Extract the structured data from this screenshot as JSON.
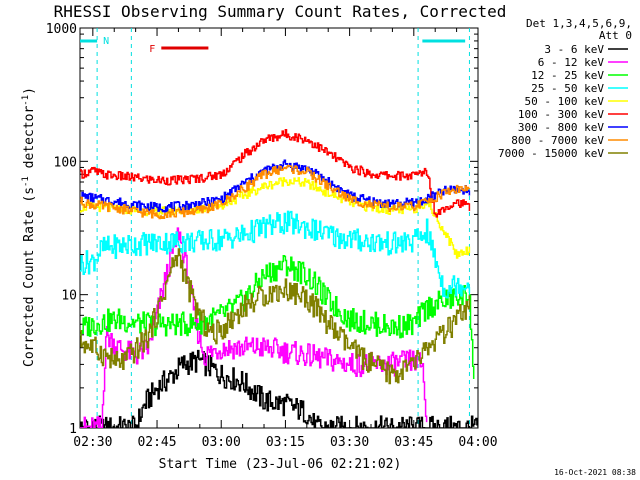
{
  "chart_data": {
    "type": "line",
    "title": "RHESSI Observing Summary Count Rates, Corrected",
    "xlabel": "Start Time (23-Jul-06 02:21:02)",
    "ylabel": "Corrected Count Rate (s",
    "ylabel_sup1": "-1",
    "ylabel_mid": " detector",
    "ylabel_sup2": "-1",
    "ylabel_end": ")",
    "y_scale": "log",
    "ylim": [
      1,
      1000
    ],
    "xlim_minutes": [
      -33,
      60
    ],
    "x_ticks": [
      {
        "t": -30,
        "label": "02:30"
      },
      {
        "t": -15,
        "label": "02:45"
      },
      {
        "t": 0,
        "label": "03:00"
      },
      {
        "t": 15,
        "label": "03:15"
      },
      {
        "t": 30,
        "label": "03:30"
      },
      {
        "t": 45,
        "label": "03:45"
      },
      {
        "t": 60,
        "label": "04:00"
      }
    ],
    "y_ticks": [
      {
        "v": 1,
        "label": "1"
      },
      {
        "v": 10,
        "label": "10"
      },
      {
        "v": 100,
        "label": "100"
      },
      {
        "v": 1000,
        "label": "1000"
      }
    ],
    "legend_header": [
      "Det 1,3,4,5,6,9,",
      "Att 0"
    ],
    "series": [
      {
        "name": "3 - 6 keV",
        "color": "#000000",
        "points": [
          [
            -33,
            1
          ],
          [
            -20,
            1
          ],
          [
            -18,
            1.5
          ],
          [
            -15,
            2
          ],
          [
            -12,
            2.4
          ],
          [
            -9,
            3
          ],
          [
            -5,
            3.2
          ],
          [
            0,
            2.5
          ],
          [
            5,
            2.2
          ],
          [
            10,
            1.6
          ],
          [
            15,
            1.5
          ],
          [
            20,
            1.3
          ],
          [
            22,
            1
          ],
          [
            60,
            1
          ]
        ]
      },
      {
        "name": "6 - 12 keV",
        "color": "#ff00ff",
        "points": [
          [
            -33,
            1
          ],
          [
            -28,
            1
          ],
          [
            -27,
            5
          ],
          [
            -24,
            4
          ],
          [
            -20,
            3.5
          ],
          [
            -17,
            4
          ],
          [
            -14,
            10
          ],
          [
            -12,
            18
          ],
          [
            -10,
            30
          ],
          [
            -8,
            15
          ],
          [
            -6,
            6
          ],
          [
            -4,
            3.5
          ],
          [
            0,
            4
          ],
          [
            10,
            4
          ],
          [
            20,
            3.5
          ],
          [
            30,
            3
          ],
          [
            40,
            3
          ],
          [
            45,
            3.2
          ],
          [
            47,
            3
          ],
          [
            48,
            1
          ]
        ]
      },
      {
        "name": "12 - 25 keV",
        "color": "#00ff00",
        "points": [
          [
            -33,
            5.5
          ],
          [
            -30,
            6
          ],
          [
            -27,
            6.3
          ],
          [
            -24,
            6.5
          ],
          [
            -18,
            6
          ],
          [
            -12,
            6
          ],
          [
            -6,
            6
          ],
          [
            -3,
            6.5
          ],
          [
            0,
            7
          ],
          [
            5,
            9
          ],
          [
            10,
            14
          ],
          [
            15,
            17
          ],
          [
            20,
            14
          ],
          [
            25,
            9
          ],
          [
            30,
            6.5
          ],
          [
            40,
            5.7
          ],
          [
            45,
            6
          ],
          [
            48,
            8
          ],
          [
            52,
            9
          ],
          [
            55,
            9.5
          ],
          [
            58,
            10
          ],
          [
            59,
            2
          ]
        ]
      },
      {
        "name": "25 - 50 keV",
        "color": "#00ffff",
        "points": [
          [
            -33,
            17
          ],
          [
            -30,
            18
          ],
          [
            -28,
            22
          ],
          [
            -25,
            23
          ],
          [
            -20,
            24
          ],
          [
            -15,
            24.5
          ],
          [
            -10,
            25
          ],
          [
            -5,
            25
          ],
          [
            0,
            26
          ],
          [
            5,
            28
          ],
          [
            10,
            32
          ],
          [
            15,
            35
          ],
          [
            20,
            32
          ],
          [
            25,
            28
          ],
          [
            30,
            26
          ],
          [
            35,
            25
          ],
          [
            40,
            24
          ],
          [
            45,
            25
          ],
          [
            48,
            30
          ],
          [
            52,
            11
          ],
          [
            55,
            12
          ],
          [
            58,
            12
          ]
        ]
      },
      {
        "name": "50 - 100 keV",
        "color": "#ffff00",
        "points": [
          [
            -33,
            45
          ],
          [
            -30,
            46
          ],
          [
            -25,
            44
          ],
          [
            -20,
            43
          ],
          [
            -15,
            42
          ],
          [
            -10,
            43
          ],
          [
            -5,
            44
          ],
          [
            0,
            47
          ],
          [
            5,
            55
          ],
          [
            10,
            65
          ],
          [
            15,
            72
          ],
          [
            20,
            68
          ],
          [
            25,
            58
          ],
          [
            30,
            49
          ],
          [
            35,
            45
          ],
          [
            40,
            43
          ],
          [
            45,
            44
          ],
          [
            48,
            50
          ],
          [
            52,
            30
          ],
          [
            55,
            20
          ],
          [
            58,
            22
          ]
        ]
      },
      {
        "name": "100 - 300 keV",
        "color": "#ff0000",
        "points": [
          [
            -33,
            80
          ],
          [
            -30,
            85
          ],
          [
            -28,
            80
          ],
          [
            -25,
            78
          ],
          [
            -20,
            75
          ],
          [
            -15,
            72
          ],
          [
            -10,
            72
          ],
          [
            -5,
            75
          ],
          [
            0,
            80
          ],
          [
            5,
            110
          ],
          [
            10,
            145
          ],
          [
            15,
            160
          ],
          [
            20,
            145
          ],
          [
            25,
            115
          ],
          [
            30,
            90
          ],
          [
            35,
            80
          ],
          [
            40,
            78
          ],
          [
            45,
            78
          ],
          [
            48,
            85
          ],
          [
            50,
            40
          ],
          [
            52,
            45
          ],
          [
            55,
            50
          ],
          [
            58,
            45
          ]
        ]
      },
      {
        "name": "300 - 800 keV",
        "color": "#0000ff",
        "points": [
          [
            -33,
            55
          ],
          [
            -30,
            53
          ],
          [
            -25,
            50
          ],
          [
            -20,
            47
          ],
          [
            -15,
            45
          ],
          [
            -10,
            46
          ],
          [
            -5,
            48
          ],
          [
            0,
            52
          ],
          [
            5,
            68
          ],
          [
            10,
            85
          ],
          [
            15,
            95
          ],
          [
            20,
            88
          ],
          [
            25,
            70
          ],
          [
            30,
            55
          ],
          [
            35,
            50
          ],
          [
            40,
            48
          ],
          [
            45,
            49
          ],
          [
            48,
            52
          ],
          [
            52,
            60
          ],
          [
            55,
            62
          ],
          [
            58,
            60
          ]
        ]
      },
      {
        "name": "800 - 7000 keV",
        "color": "#ff8c00",
        "points": [
          [
            -33,
            50
          ],
          [
            -30,
            47
          ],
          [
            -25,
            45
          ],
          [
            -20,
            42
          ],
          [
            -15,
            40
          ],
          [
            -10,
            41
          ],
          [
            -5,
            43
          ],
          [
            0,
            48
          ],
          [
            5,
            62
          ],
          [
            10,
            80
          ],
          [
            15,
            90
          ],
          [
            20,
            83
          ],
          [
            25,
            65
          ],
          [
            30,
            52
          ],
          [
            35,
            47
          ],
          [
            40,
            45
          ],
          [
            45,
            46
          ],
          [
            48,
            50
          ],
          [
            52,
            58
          ],
          [
            55,
            62
          ],
          [
            58,
            62
          ]
        ]
      },
      {
        "name": "7000 - 15000 keV",
        "color": "#808000",
        "points": [
          [
            -33,
            4.5
          ],
          [
            -30,
            4
          ],
          [
            -27,
            3.5
          ],
          [
            -24,
            3
          ],
          [
            -20,
            3.8
          ],
          [
            -17,
            5
          ],
          [
            -14,
            9
          ],
          [
            -12,
            15
          ],
          [
            -10,
            20
          ],
          [
            -8,
            12
          ],
          [
            -6,
            8
          ],
          [
            -4,
            6
          ],
          [
            -2,
            5
          ],
          [
            0,
            5.5
          ],
          [
            5,
            8
          ],
          [
            10,
            10
          ],
          [
            15,
            11
          ],
          [
            20,
            9.5
          ],
          [
            25,
            6
          ],
          [
            30,
            4
          ],
          [
            35,
            3
          ],
          [
            40,
            2.5
          ],
          [
            45,
            3
          ],
          [
            48,
            4
          ],
          [
            52,
            5
          ],
          [
            55,
            6.5
          ],
          [
            58,
            8
          ]
        ]
      }
    ],
    "annotations": {
      "night_label": "N",
      "flare_label": "F",
      "flare_color": "#e00000",
      "night_color": "#00e0e0",
      "night_bars_minutes": [
        [
          -33,
          -29
        ],
        [
          47,
          57
        ]
      ],
      "night_dashed_lines_minutes": [
        -29,
        -21,
        46,
        58
      ],
      "flare_bar_minutes": [
        -14,
        -3
      ]
    },
    "timestamp": "16-Oct-2021 08:38"
  }
}
